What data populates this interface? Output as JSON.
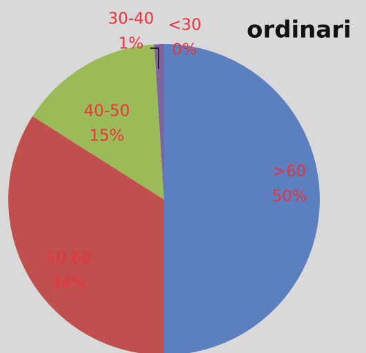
{
  "chart_data": {
    "type": "pie",
    "title": "ordinari",
    "categories": [
      ">60",
      "50-60",
      "40-50",
      "30-40",
      "<30"
    ],
    "values": [
      50,
      34,
      15,
      1,
      0
    ],
    "value_labels": [
      "50%",
      "34%",
      "15%",
      "1%",
      "0%"
    ],
    "colors": [
      "#5b7fbf",
      "#bf504d",
      "#9bbb59",
      "#8064a2",
      "#4bacc6"
    ],
    "label_color": "#e8343a"
  }
}
